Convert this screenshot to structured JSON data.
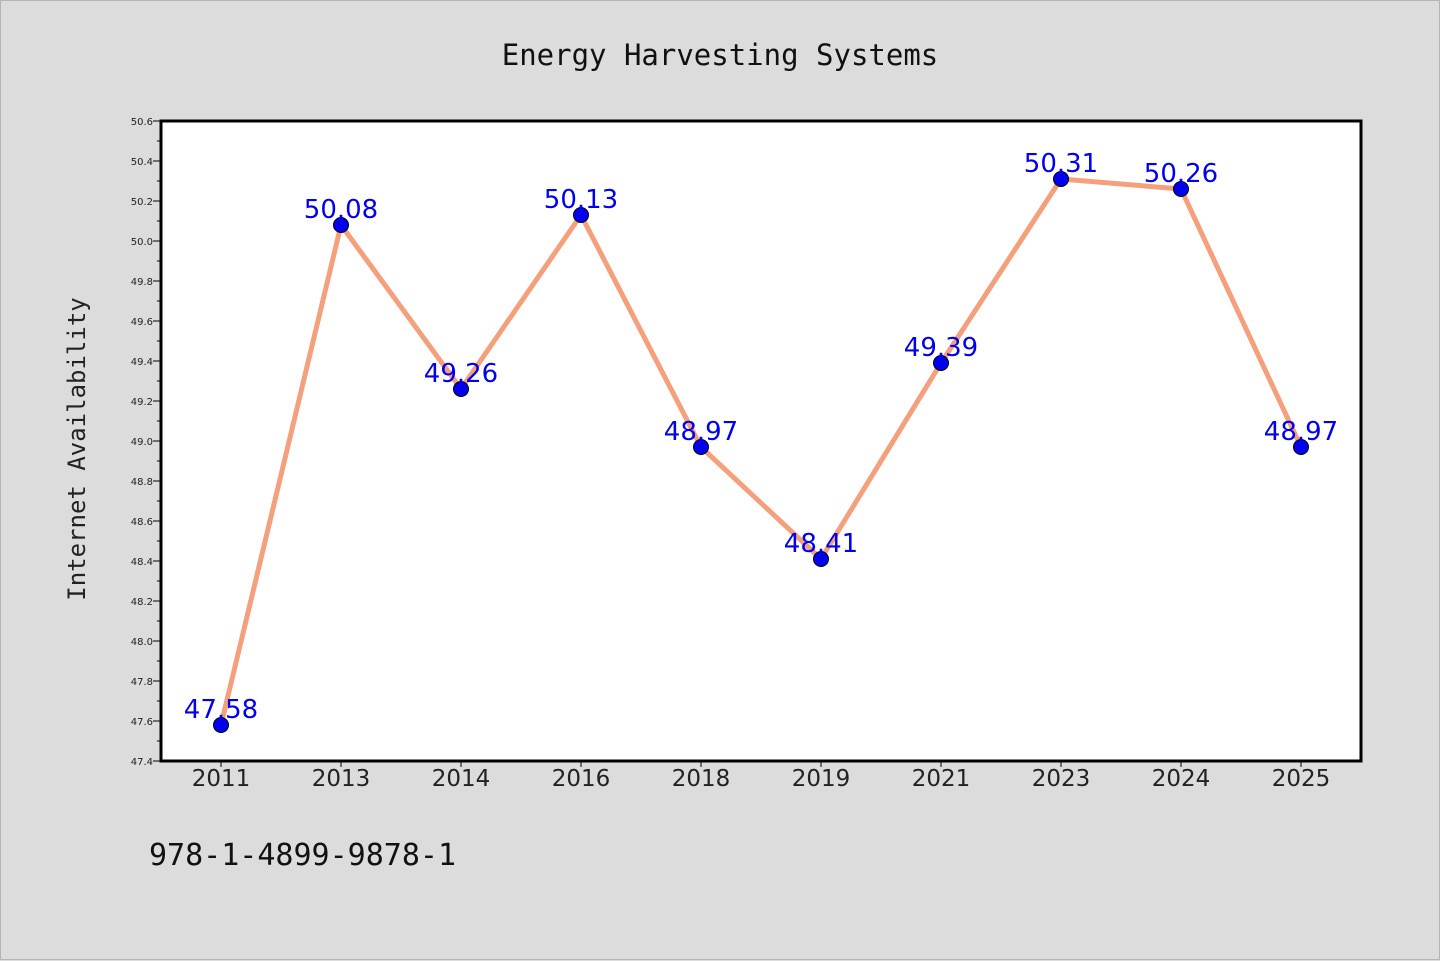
{
  "footer_code": "978-1-4899-9878-1",
  "colors": {
    "background": "#dcdcdc",
    "plot_background": "#ffffff",
    "line": "#f4a07c",
    "marker": "#0000ee",
    "data_label": "#0000ee"
  },
  "chart_data": {
    "type": "line",
    "title": "Energy Harvesting Systems",
    "xlabel": "",
    "ylabel": "Internet Availability",
    "categories": [
      "2011",
      "2013",
      "2014",
      "2016",
      "2018",
      "2019",
      "2021",
      "2023",
      "2024",
      "2025"
    ],
    "values": [
      47.58,
      50.08,
      49.26,
      50.13,
      48.97,
      48.41,
      49.39,
      50.31,
      50.26,
      48.97
    ],
    "data_labels": [
      "47.58",
      "50.08",
      "49.26",
      "50.13",
      "48.97",
      "48.41",
      "49.39",
      "50.31",
      "50.26",
      "48.97"
    ],
    "ylim": [
      47.4,
      50.6
    ],
    "yticks": [
      "47.4",
      "47.6",
      "47.8",
      "48.0",
      "48.2",
      "48.4",
      "48.6",
      "48.8",
      "49.0",
      "49.2",
      "49.4",
      "49.6",
      "49.8",
      "50.0",
      "50.2",
      "50.4",
      "50.6"
    ],
    "grid": false,
    "legend": "none",
    "markers": "circle"
  }
}
